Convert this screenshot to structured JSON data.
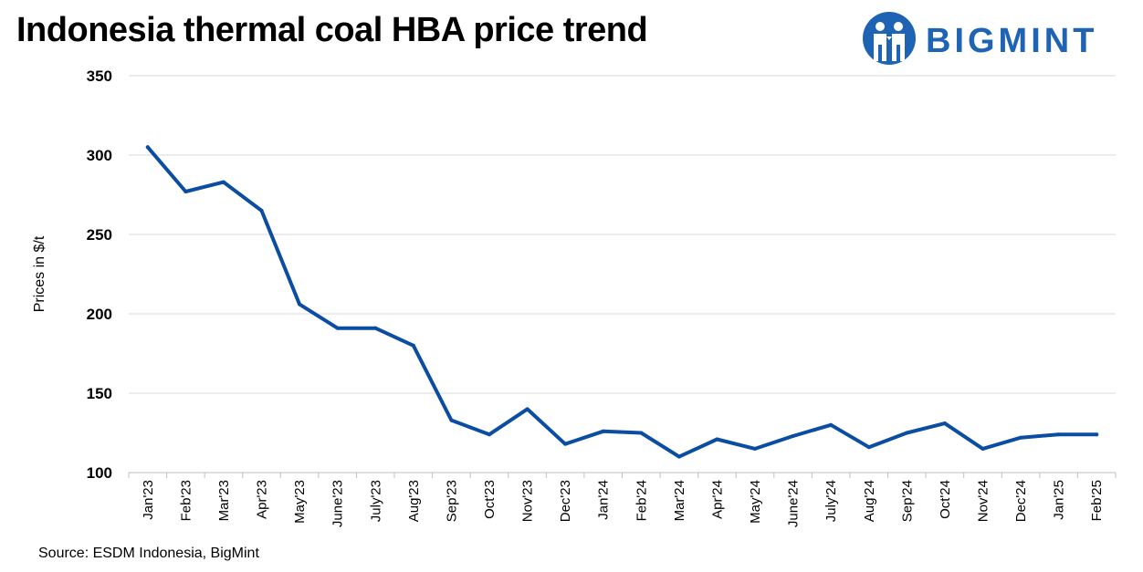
{
  "title": "Indonesia thermal coal HBA price trend",
  "brand": {
    "name": "BIGMINT",
    "color": "#1f63b5"
  },
  "source": "Source: ESDM Indonesia, BigMint",
  "chart_data": {
    "type": "line",
    "title": "Indonesia thermal coal HBA price trend",
    "xlabel": "",
    "ylabel": "Prices in $/t",
    "ylim": [
      100,
      350
    ],
    "yticks": [
      100,
      150,
      200,
      250,
      300,
      350
    ],
    "grid": true,
    "line_color": "#0b4da2",
    "categories": [
      "Jan'23",
      "Feb'23",
      "Mar'23",
      "Apr'23",
      "May'23",
      "June'23",
      "July'23",
      "Aug'23",
      "Sep'23",
      "Oct'23",
      "Nov'23",
      "Dec'23",
      "Jan'24",
      "Feb'24",
      "Mar'24",
      "Apr'24",
      "May'24",
      "June'24",
      "July'24",
      "Aug'24",
      "Sep'24",
      "Oct'24",
      "Nov'24",
      "Dec'24",
      "Jan'25",
      "Feb'25"
    ],
    "series": [
      {
        "values": [
          305,
          277,
          283,
          265,
          206,
          191,
          191,
          180,
          133,
          124,
          140,
          118,
          126,
          125,
          110,
          121,
          115,
          123,
          130,
          116,
          125,
          131,
          115,
          122,
          124,
          124
        ]
      }
    ]
  }
}
